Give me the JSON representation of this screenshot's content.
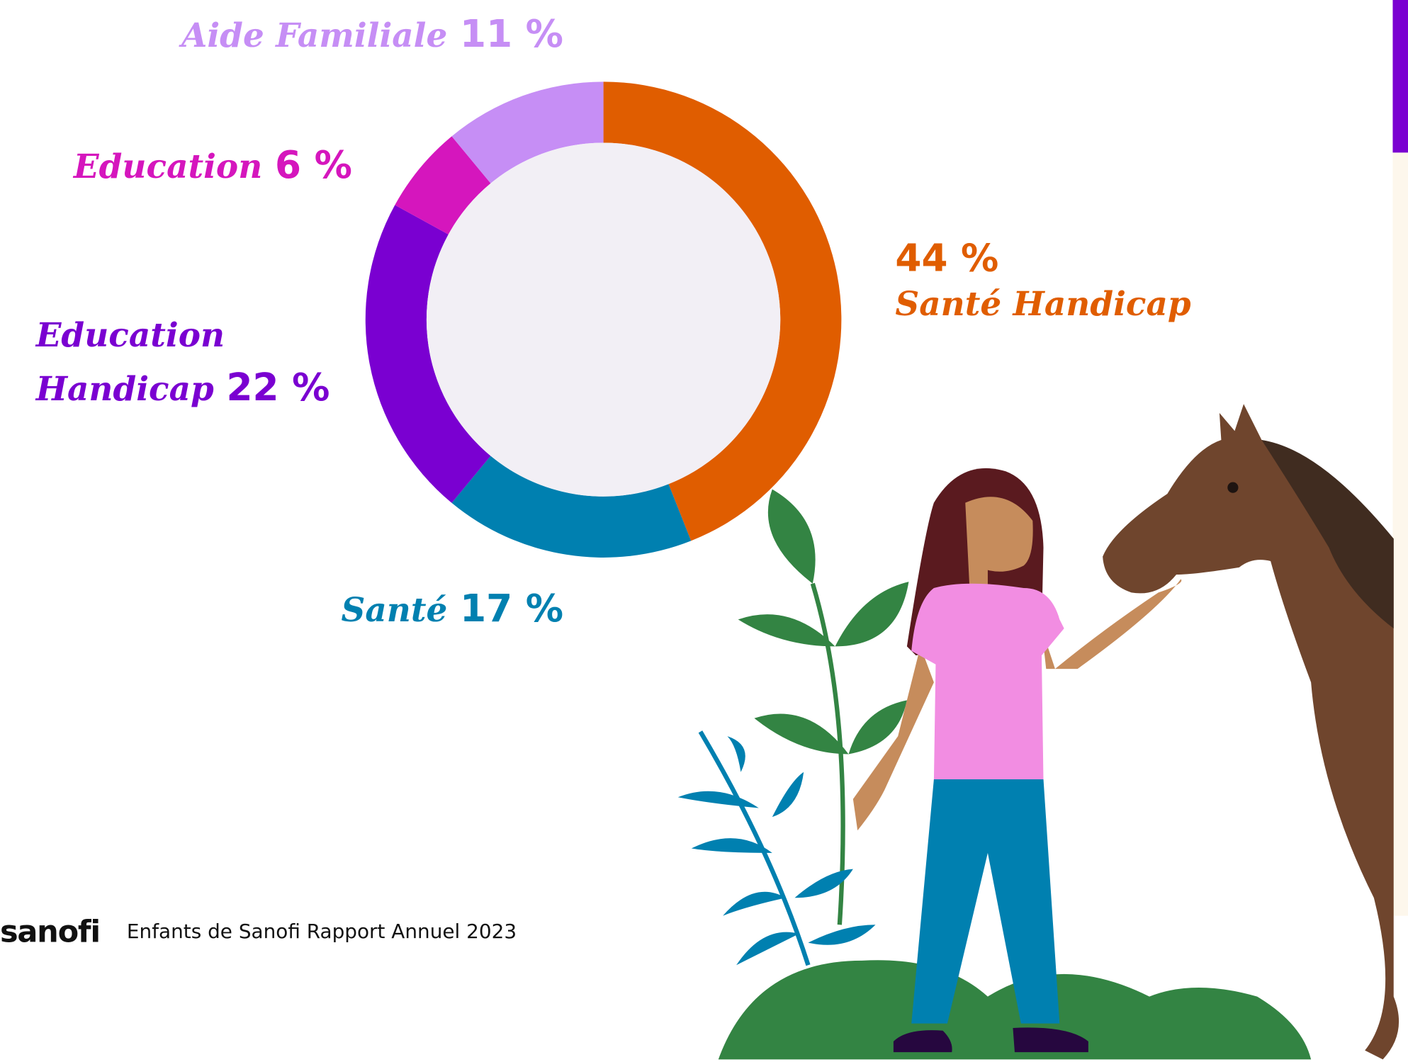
{
  "chart_data": {
    "type": "donut",
    "categories": [
      "Santé Handicap",
      "Santé",
      "Education Handicap",
      "Education",
      "Aide Familiale"
    ],
    "values": [
      44,
      17,
      22,
      6,
      11
    ],
    "value_labels": [
      "44 %",
      "17 %",
      "22 %",
      "6 %",
      "11 %"
    ],
    "colors": [
      "#e05d00",
      "#0080b0",
      "#7a00d1",
      "#d516bd",
      "#c68ef5"
    ]
  },
  "footer": {
    "logo": "sanofi",
    "text": "Enfants de Sanofi Rapport Annuel 2023"
  }
}
